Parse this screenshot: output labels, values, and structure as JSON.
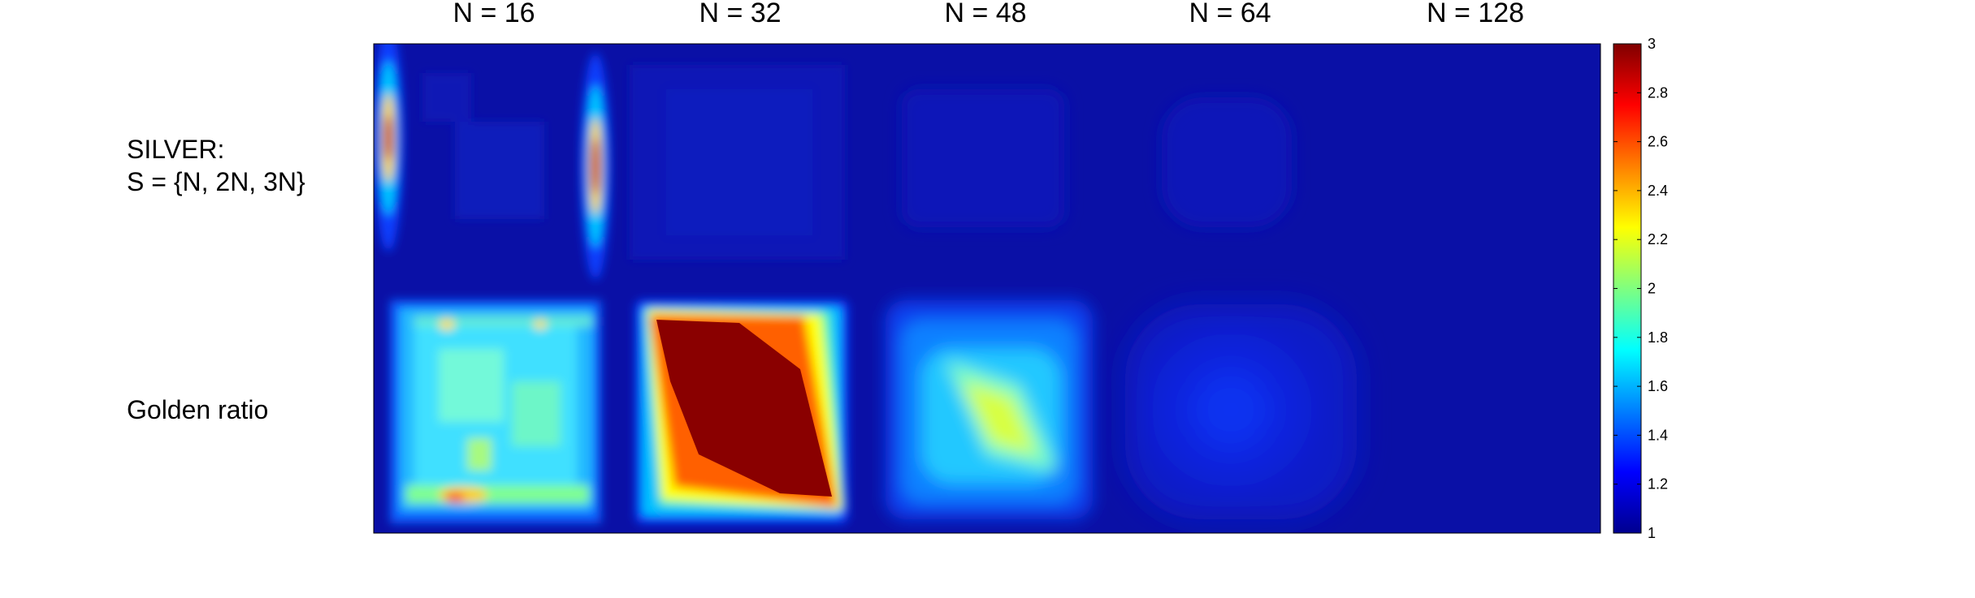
{
  "chart_data": {
    "type": "heatmap",
    "columns": [
      "N = 16",
      "N = 32",
      "N = 48",
      "N = 64",
      "N = 128"
    ],
    "rows": [
      {
        "label_lines": [
          "SILVER:",
          "S = {N, 2N, 3N}"
        ]
      },
      {
        "label_lines": [
          "Golden ratio"
        ]
      }
    ],
    "colormap": "jet",
    "clim": [
      1,
      3
    ],
    "colorbar": {
      "ticks": [
        "1",
        "1.2",
        "1.4",
        "1.6",
        "1.8",
        "2",
        "2.2",
        "2.4",
        "2.6",
        "2.8",
        "3"
      ],
      "placement": "right"
    },
    "panel_summary": [
      [
        {
          "pattern": "two-vertical-streaks",
          "background": 1.0,
          "peak": 2.9
        },
        {
          "pattern": "faint-grid",
          "background": 1.05,
          "peak": 1.1
        },
        {
          "pattern": "faint-diamond",
          "background": 1.0,
          "peak": 1.06
        },
        {
          "pattern": "faint-rounded-square",
          "background": 1.0,
          "peak": 1.05
        },
        {
          "pattern": "uniform",
          "background": 1.0,
          "peak": 1.0
        }
      ],
      [
        {
          "pattern": "noisy-square",
          "background": 1.0,
          "peak": 2.5
        },
        {
          "pattern": "saturated-diamond",
          "background": 1.0,
          "peak": 3.0
        },
        {
          "pattern": "soft-diamond",
          "background": 1.0,
          "peak": 2.15
        },
        {
          "pattern": "radial-disc",
          "background": 1.0,
          "peak": 1.25
        },
        {
          "pattern": "uniform",
          "background": 1.0,
          "peak": 1.0
        }
      ]
    ]
  }
}
